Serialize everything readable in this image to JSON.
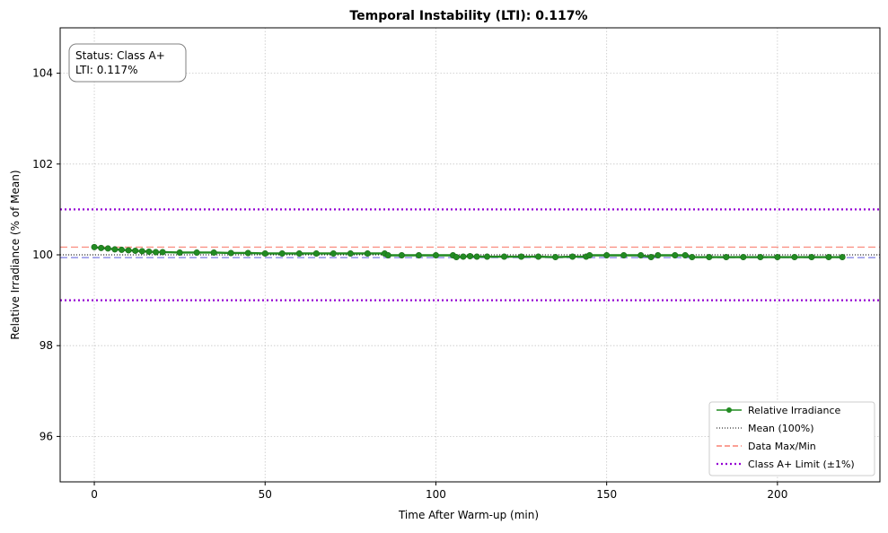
{
  "chart_data": {
    "type": "line",
    "title": "Temporal Instability (LTI): 0.117%",
    "xlabel": "Time After Warm-up (min)",
    "ylabel": "Relative Irradiance (% of Mean)",
    "xlim": [
      -10,
      230
    ],
    "ylim": [
      95,
      105
    ],
    "xticks": [
      0,
      50,
      100,
      150,
      200
    ],
    "yticks": [
      96,
      98,
      100,
      102,
      104
    ],
    "grid": true,
    "status_box": {
      "line1": "Status: Class A+",
      "line2": "LTI: 0.117%"
    },
    "reference_lines": {
      "mean": 100.0,
      "data_max": 100.17,
      "data_min": 99.94,
      "class_limit_upper": 101.0,
      "class_limit_lower": 99.0
    },
    "series": [
      {
        "name": "Relative Irradiance",
        "color": "#228b22",
        "x": [
          0,
          2,
          4,
          6,
          8,
          10,
          12,
          14,
          16,
          18,
          20,
          25,
          30,
          35,
          40,
          45,
          50,
          55,
          60,
          65,
          70,
          75,
          80,
          85,
          86,
          90,
          95,
          100,
          105,
          106,
          108,
          110,
          112,
          115,
          120,
          125,
          130,
          135,
          140,
          144,
          145,
          150,
          155,
          160,
          163,
          165,
          170,
          173,
          175,
          180,
          185,
          190,
          195,
          200,
          205,
          210,
          215,
          219
        ],
        "y": [
          100.17,
          100.15,
          100.14,
          100.12,
          100.11,
          100.1,
          100.09,
          100.08,
          100.07,
          100.06,
          100.06,
          100.05,
          100.05,
          100.05,
          100.04,
          100.04,
          100.03,
          100.03,
          100.03,
          100.03,
          100.03,
          100.03,
          100.03,
          100.03,
          99.99,
          99.99,
          99.99,
          99.99,
          99.99,
          99.95,
          99.96,
          99.97,
          99.96,
          99.96,
          99.96,
          99.96,
          99.96,
          99.95,
          99.96,
          99.96,
          99.99,
          99.99,
          99.99,
          99.99,
          99.95,
          99.99,
          99.99,
          99.99,
          99.95,
          99.95,
          99.95,
          99.95,
          99.95,
          99.95,
          99.95,
          99.95,
          99.95,
          99.95
        ]
      }
    ],
    "legend": {
      "placement": "lower-right",
      "entries": [
        {
          "label": "Relative Irradiance",
          "color": "#228b22",
          "style": "line-marker"
        },
        {
          "label": "Mean (100%)",
          "color": "#000000",
          "style": "dotted"
        },
        {
          "label": "Data Max/Min",
          "color": "#fa8072",
          "style": "dashed"
        },
        {
          "label": "Class A+ Limit (±1%)",
          "color": "#9400d3",
          "style": "dotted-thick"
        }
      ]
    }
  }
}
